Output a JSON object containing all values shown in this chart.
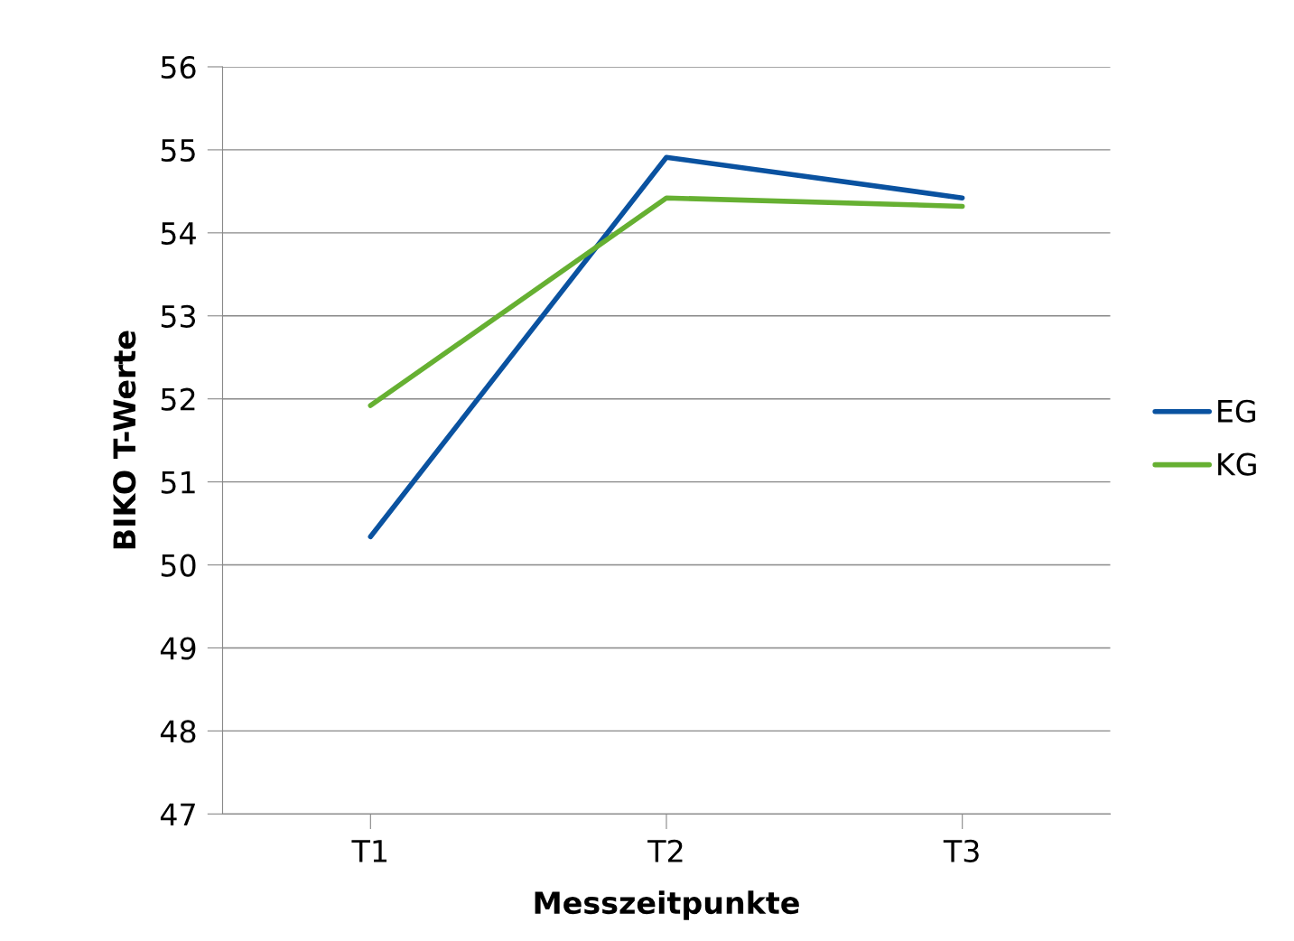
{
  "chart_data": {
    "type": "line",
    "xlabel": "Messzeitpunkte",
    "ylabel": "BIKO T-Werte",
    "categories": [
      "T1",
      "T2",
      "T3"
    ],
    "series": [
      {
        "name": "EG",
        "color": "#0a52a0",
        "values": [
          50.34,
          54.91,
          54.42
        ]
      },
      {
        "name": "KG",
        "color": "#66b032",
        "values": [
          51.92,
          54.42,
          54.32
        ]
      }
    ],
    "ylim": [
      47,
      56
    ],
    "yticks": [
      47,
      48,
      49,
      50,
      51,
      52,
      53,
      54,
      55,
      56
    ],
    "grid": "y",
    "legend": "right",
    "marker": "none",
    "line_style": "solid"
  }
}
